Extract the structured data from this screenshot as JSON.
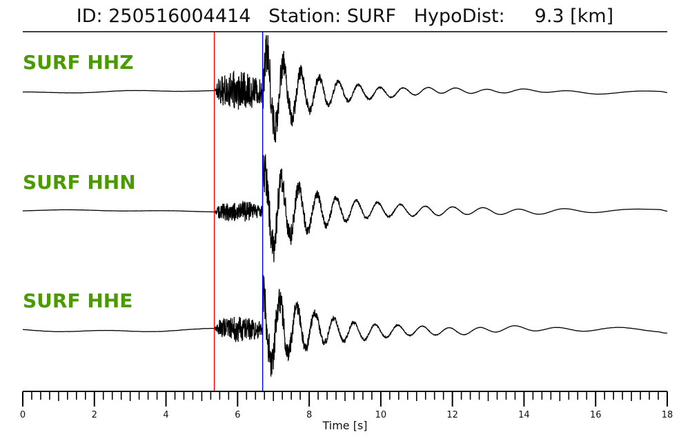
{
  "header": {
    "id_text": "ID: 250516004414",
    "station_text": "Station: SURF",
    "hypodist_text": "HypoDist:",
    "hypodist_value": "9.3 [km]"
  },
  "chart_data": {
    "type": "line",
    "title": "ID: 250516004414   Station: SURF   HypoDist:     9.3 [km]",
    "xlabel": "Time [s]",
    "ylabel": "",
    "xlim": [
      0,
      18
    ],
    "major_ticks": [
      0,
      2,
      4,
      6,
      8,
      10,
      12,
      14,
      16,
      18
    ],
    "minor_tick_step": 0.25,
    "grid": false,
    "picks": [
      {
        "phase": "P",
        "time": 5.35,
        "color": "#ff0000"
      },
      {
        "phase": "S",
        "time": 6.7,
        "color": "#0000ff"
      }
    ],
    "series": [
      {
        "name": "SURF HHZ",
        "onset": 5.35,
        "s_arrival": 6.7,
        "pre_amp": 0.03,
        "p_amp": 0.45,
        "s_amp": 1.0,
        "coda_amp": 0.12
      },
      {
        "name": "SURF HHN",
        "onset": 5.35,
        "s_arrival": 6.7,
        "pre_amp": 0.02,
        "p_amp": 0.25,
        "s_amp": 0.9,
        "coda_amp": 0.2
      },
      {
        "name": "SURF HHE",
        "onset": 5.35,
        "s_arrival": 6.7,
        "pre_amp": 0.04,
        "p_amp": 0.3,
        "s_amp": 0.85,
        "coda_amp": 0.18
      }
    ],
    "label_color": "#4a9a00",
    "trace_color": "#000000"
  }
}
